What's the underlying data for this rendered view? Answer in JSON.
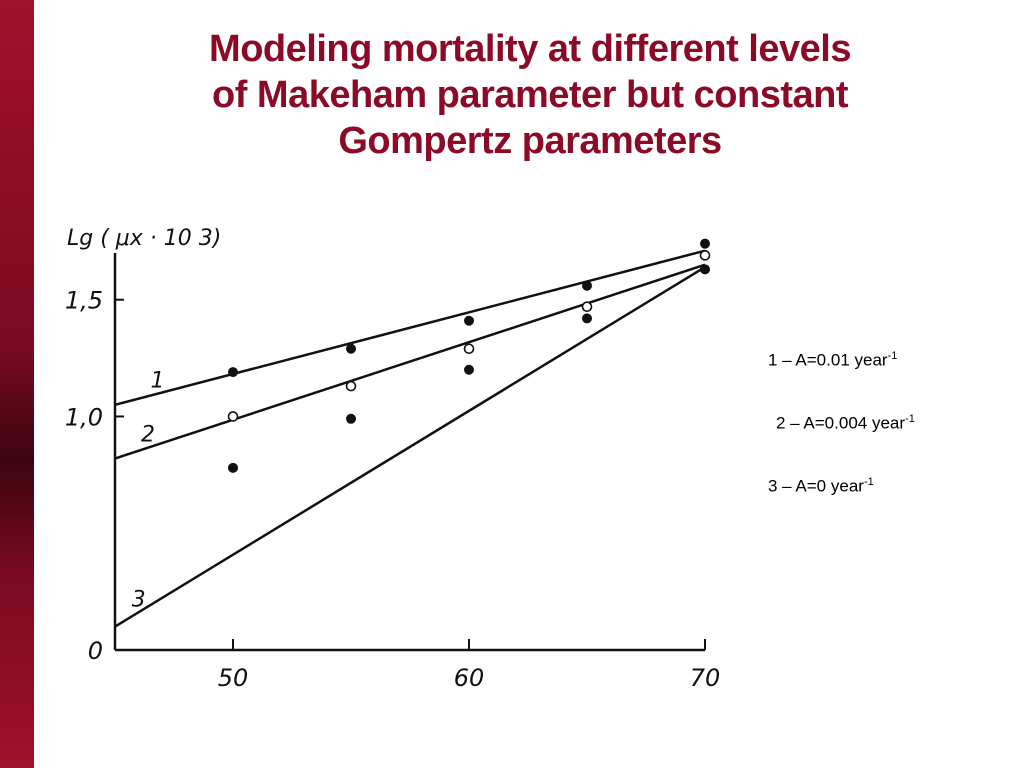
{
  "slide": {
    "title_lines": [
      "Modeling mortality at different levels",
      "of Makeham parameter but constant",
      "Gompertz parameters"
    ],
    "sidebar_color": "#8b0a26",
    "title_color": "#8b0a26"
  },
  "chart_data": {
    "type": "line",
    "ylabel": "Lg ( μx · 10 3)",
    "xlim": [
      45,
      70
    ],
    "ylim": [
      0,
      1.7
    ],
    "x_ticks": [
      50,
      60,
      70
    ],
    "x_tick_labels": [
      "50",
      "60",
      "70"
    ],
    "y_ticks": [
      0,
      1.0,
      1.5
    ],
    "y_tick_labels": [
      "0",
      "1,0",
      "1,5"
    ],
    "grid": false,
    "series": [
      {
        "name": "1",
        "marker": "filled",
        "line": {
          "x": [
            45,
            70
          ],
          "y": [
            1.05,
            1.71
          ]
        },
        "points": {
          "x": [
            50,
            55,
            60,
            65,
            70
          ],
          "y": [
            1.19,
            1.29,
            1.41,
            1.56,
            1.74
          ]
        }
      },
      {
        "name": "2",
        "marker": "open",
        "line": {
          "x": [
            45,
            70
          ],
          "y": [
            0.82,
            1.65
          ]
        },
        "points": {
          "x": [
            50,
            55,
            60,
            65,
            70
          ],
          "y": [
            1.0,
            1.13,
            1.29,
            1.47,
            1.69
          ]
        }
      },
      {
        "name": "3",
        "marker": "filled",
        "line": {
          "x": [
            45,
            70
          ],
          "y": [
            0.1,
            1.64
          ]
        },
        "points": {
          "x": [
            50,
            55,
            60,
            65,
            70
          ],
          "y": [
            0.78,
            0.99,
            1.2,
            1.42,
            1.63
          ]
        }
      }
    ]
  },
  "legend": {
    "entries": [
      {
        "text": "1 – A=0.01 year",
        "sup": "-1"
      },
      {
        "text": "2 – A=0.004 year",
        "sup": "-1"
      },
      {
        "text": "3 – A=0 year",
        "sup": "-1"
      }
    ]
  }
}
